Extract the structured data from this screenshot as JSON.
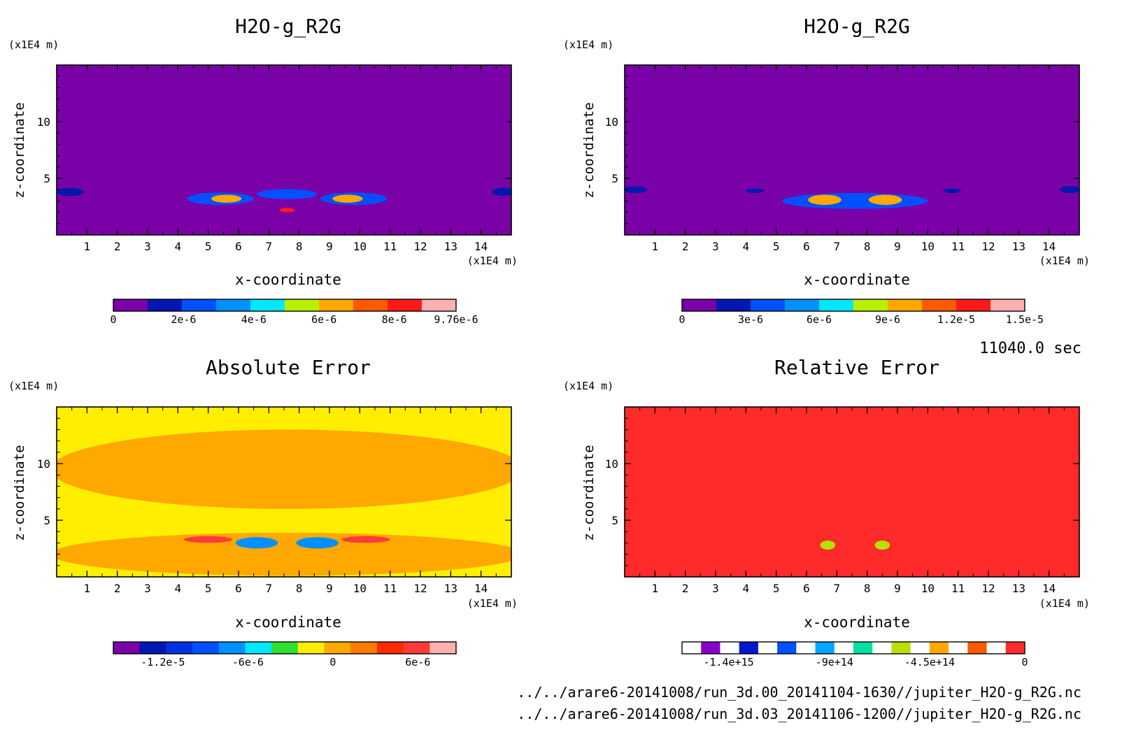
{
  "time_label": "11040.0 sec",
  "file_paths": [
    "../../arare6-20141008/run_3d.00_20141104-1630//jupiter_H2O-g_R2G.nc",
    "../../arare6-20141008/run_3d.03_20141106-1200//jupiter_H2O-g_R2G.nc"
  ],
  "chart_data": [
    {
      "type": "heatmap",
      "title": "H2O-g_R2G",
      "xlabel": "x-coordinate",
      "ylabel": "z-coordinate",
      "x_unit": "(x1E4 m)",
      "y_unit": "(x1E4 m)",
      "xlim": [
        0,
        15
      ],
      "ylim": [
        0,
        15
      ],
      "x_ticks": [
        "1",
        "2",
        "3",
        "4",
        "5",
        "6",
        "7",
        "8",
        "9",
        "10",
        "11",
        "12",
        "13",
        "14"
      ],
      "y_ticks": [
        "5",
        "10"
      ],
      "background": "#7a00a8",
      "colorbar": {
        "colors": [
          "#7a00a8",
          "#0018b0",
          "#0050ff",
          "#0090ff",
          "#00e8ff",
          "#b8f000",
          "#ffa800",
          "#ff5a00",
          "#ff1a1a",
          "#ffb0b0"
        ],
        "tick_labels": [
          "0",
          "2e-6",
          "4e-6",
          "6e-6",
          "8e-6",
          "9.76e-6"
        ],
        "tick_values": [
          0,
          2e-06,
          4e-06,
          6e-06,
          8e-06,
          9.76e-06
        ]
      },
      "features": [
        {
          "x": 0.45,
          "z": 3.8,
          "rx": 0.45,
          "rz": 0.35,
          "level": 1
        },
        {
          "x": 5.4,
          "z": 3.2,
          "rx": 1.1,
          "rz": 0.55,
          "level": 2
        },
        {
          "x": 5.6,
          "z": 3.2,
          "rx": 0.5,
          "rz": 0.35,
          "level": 6
        },
        {
          "x": 7.6,
          "z": 3.6,
          "rx": 1.0,
          "rz": 0.45,
          "level": 2
        },
        {
          "x": 7.6,
          "z": 2.2,
          "rx": 0.25,
          "rz": 0.2,
          "level": 8
        },
        {
          "x": 9.8,
          "z": 3.2,
          "rx": 1.1,
          "rz": 0.55,
          "level": 2
        },
        {
          "x": 9.6,
          "z": 3.2,
          "rx": 0.5,
          "rz": 0.35,
          "level": 6
        },
        {
          "x": 14.75,
          "z": 3.8,
          "rx": 0.4,
          "rz": 0.35,
          "level": 1
        }
      ]
    },
    {
      "type": "heatmap",
      "title": "H2O-g_R2G",
      "xlabel": "x-coordinate",
      "ylabel": "z-coordinate",
      "x_unit": "(x1E4 m)",
      "y_unit": "(x1E4 m)",
      "xlim": [
        0,
        15
      ],
      "ylim": [
        0,
        15
      ],
      "x_ticks": [
        "1",
        "2",
        "3",
        "4",
        "5",
        "6",
        "7",
        "8",
        "9",
        "10",
        "11",
        "12",
        "13",
        "14"
      ],
      "y_ticks": [
        "5",
        "10"
      ],
      "background": "#7a00a8",
      "colorbar": {
        "colors": [
          "#7a00a8",
          "#0018b0",
          "#0050ff",
          "#0090ff",
          "#00e8ff",
          "#b8f000",
          "#ffa800",
          "#ff5a00",
          "#ff1a1a",
          "#ffb0b0"
        ],
        "tick_labels": [
          "0",
          "3e-6",
          "6e-6",
          "9e-6",
          "1.2e-5",
          "1.5e-5"
        ],
        "tick_values": [
          0,
          3e-06,
          6e-06,
          9e-06,
          1.2e-05,
          1.5e-05
        ]
      },
      "features": [
        {
          "x": 0.35,
          "z": 4.0,
          "rx": 0.4,
          "rz": 0.3,
          "level": 1
        },
        {
          "x": 7.6,
          "z": 3.0,
          "rx": 2.4,
          "rz": 0.7,
          "level": 2
        },
        {
          "x": 6.6,
          "z": 3.1,
          "rx": 0.55,
          "rz": 0.45,
          "level": 6
        },
        {
          "x": 8.6,
          "z": 3.1,
          "rx": 0.55,
          "rz": 0.45,
          "level": 6
        },
        {
          "x": 4.3,
          "z": 3.9,
          "rx": 0.3,
          "rz": 0.2,
          "level": 1
        },
        {
          "x": 10.8,
          "z": 3.9,
          "rx": 0.3,
          "rz": 0.2,
          "level": 1
        },
        {
          "x": 14.7,
          "z": 4.0,
          "rx": 0.35,
          "rz": 0.3,
          "level": 1
        }
      ]
    },
    {
      "type": "heatmap",
      "title": "Absolute Error",
      "xlabel": "x-coordinate",
      "ylabel": "z-coordinate",
      "x_unit": "(x1E4 m)",
      "y_unit": "(x1E4 m)",
      "xlim": [
        0,
        15
      ],
      "ylim": [
        0,
        15
      ],
      "x_ticks": [
        "1",
        "2",
        "3",
        "4",
        "5",
        "6",
        "7",
        "8",
        "9",
        "10",
        "11",
        "12",
        "13",
        "14"
      ],
      "y_ticks": [
        "5",
        "10"
      ],
      "background": "#ffee00",
      "colorbar": {
        "colors": [
          "#7a00a8",
          "#0018b0",
          "#0030e0",
          "#0050ff",
          "#0090ff",
          "#00e8ff",
          "#30e030",
          "#ffee00",
          "#ffa800",
          "#ff7a00",
          "#ff2a00",
          "#ff3a3a",
          "#ffb0b0"
        ],
        "tick_labels": [
          "-1.2e-5",
          "-6e-6",
          "0",
          "6e-6"
        ],
        "tick_values": [
          -1.2e-05,
          -6e-06,
          0,
          6e-06
        ]
      },
      "features": [
        {
          "x": 7.6,
          "z": 9.5,
          "rx": 7.8,
          "rz": 3.5,
          "level": 8
        },
        {
          "x": 7.6,
          "z": 2.0,
          "rx": 7.8,
          "rz": 1.9,
          "level": 8
        },
        {
          "x": 6.6,
          "z": 3.0,
          "rx": 0.7,
          "rz": 0.5,
          "level": 4
        },
        {
          "x": 8.6,
          "z": 3.0,
          "rx": 0.7,
          "rz": 0.5,
          "level": 4
        },
        {
          "x": 5.0,
          "z": 3.3,
          "rx": 0.8,
          "rz": 0.3,
          "level": 11
        },
        {
          "x": 10.2,
          "z": 3.3,
          "rx": 0.8,
          "rz": 0.3,
          "level": 11
        }
      ]
    },
    {
      "type": "heatmap",
      "title": "Relative Error",
      "xlabel": "x-coordinate",
      "ylabel": "z-coordinate",
      "x_unit": "(x1E4 m)",
      "y_unit": "(x1E4 m)",
      "xlim": [
        0,
        15
      ],
      "ylim": [
        0,
        15
      ],
      "x_ticks": [
        "1",
        "2",
        "3",
        "4",
        "5",
        "6",
        "7",
        "8",
        "9",
        "10",
        "11",
        "12",
        "13",
        "14"
      ],
      "y_ticks": [
        "5",
        "10"
      ],
      "background": "#ff2a2a",
      "colorbar": {
        "colors": [
          "#ffffff",
          "#8800cc",
          "#ffffff",
          "#0018d0",
          "#ffffff",
          "#0050ff",
          "#ffffff",
          "#00a8ff",
          "#ffffff",
          "#00e0a0",
          "#ffffff",
          "#b8e000",
          "#ffffff",
          "#ffa800",
          "#ffffff",
          "#ff5a00",
          "#ffffff",
          "#ff2a2a"
        ],
        "tick_labels": [
          "-1.4e+15",
          "-9e+14",
          "-4.5e+14",
          "0"
        ],
        "tick_values": [
          -1400000000000000.0,
          -900000000000000.0,
          -450000000000000.0,
          0
        ]
      },
      "features": [
        {
          "x": 7.6,
          "z": 9.5,
          "rx": 7.8,
          "rz": 3.3,
          "level": 17
        },
        {
          "x": 7.6,
          "z": 1.8,
          "rx": 7.8,
          "rz": 1.9,
          "level": 17
        },
        {
          "x": 6.7,
          "z": 2.8,
          "rx": 0.25,
          "rz": 0.4,
          "level": 11
        },
        {
          "x": 8.5,
          "z": 2.8,
          "rx": 0.25,
          "rz": 0.4,
          "level": 11
        }
      ]
    }
  ]
}
